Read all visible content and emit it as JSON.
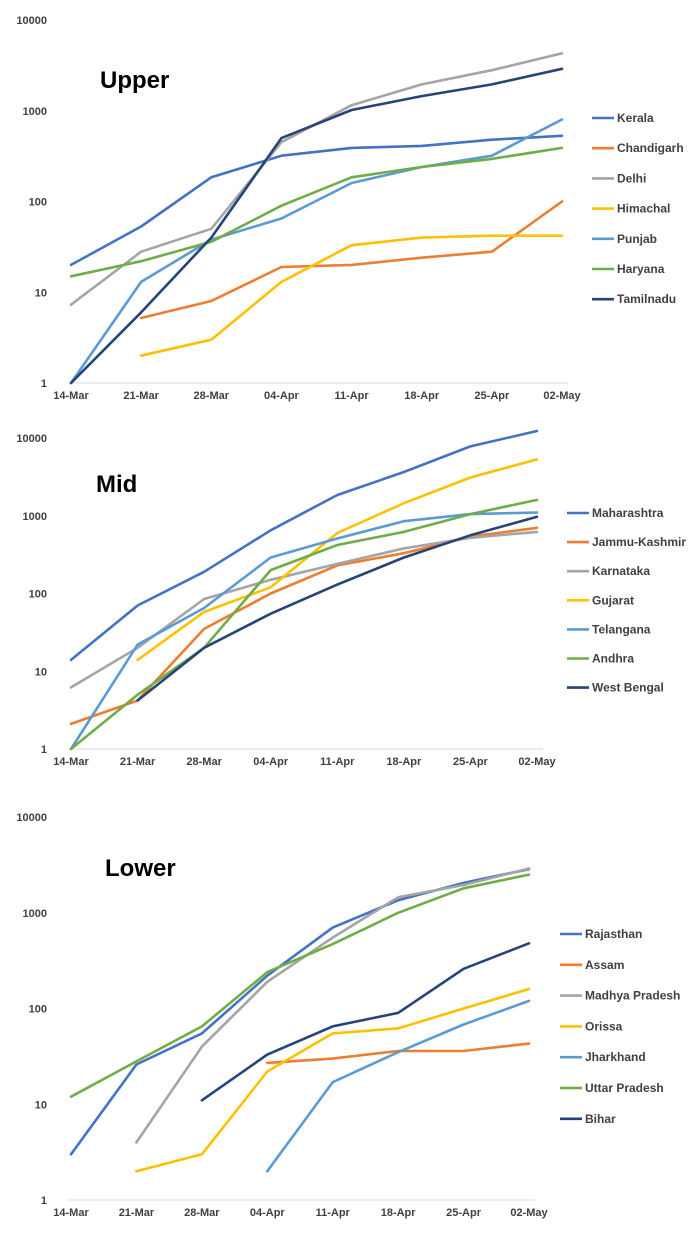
{
  "chart_data": [
    {
      "type": "line",
      "title": "Upper",
      "xlabel": "",
      "ylabel": "",
      "log_scale_y": true,
      "ylim": [
        1,
        10000
      ],
      "y_ticks": [
        "1",
        "10",
        "100",
        "1000",
        "10000"
      ],
      "categories": [
        "14-Mar",
        "21-Mar",
        "28-Mar",
        "04-Apr",
        "11-Apr",
        "18-Apr",
        "25-Apr",
        "02-May"
      ],
      "legend_position": "right",
      "series": [
        {
          "name": "Kerala",
          "color": "#4472C4",
          "values": [
            20,
            53,
            185,
            320,
            390,
            410,
            480,
            530
          ]
        },
        {
          "name": "Chandigarh",
          "color": "#ED7D31",
          "values": [
            null,
            5.2,
            8,
            19,
            20,
            24,
            28,
            100
          ]
        },
        {
          "name": "Delhi",
          "color": "#A5A5A5",
          "values": [
            7.3,
            28,
            50,
            450,
            1150,
            1950,
            2800,
            4300
          ]
        },
        {
          "name": "Himachal",
          "color": "#FFC000",
          "values": [
            null,
            2,
            3,
            13,
            33,
            40,
            42,
            42
          ]
        },
        {
          "name": "Punjab",
          "color": "#5B9BD5",
          "values": [
            1,
            13,
            38,
            65,
            160,
            240,
            320,
            800
          ]
        },
        {
          "name": "Haryana",
          "color": "#70AD47",
          "values": [
            15,
            22,
            36,
            90,
            185,
            240,
            295,
            390
          ]
        },
        {
          "name": "Tamilnadu",
          "color": "#264478",
          "values": [
            1,
            6,
            40,
            500,
            1020,
            1450,
            1950,
            2900
          ]
        }
      ]
    },
    {
      "type": "line",
      "title": "Mid",
      "xlabel": "",
      "ylabel": "",
      "log_scale_y": true,
      "ylim": [
        1,
        10000
      ],
      "y_ticks": [
        "1",
        "10",
        "100",
        "1000",
        "10000"
      ],
      "categories": [
        "14-Mar",
        "21-Mar",
        "28-Mar",
        "04-Apr",
        "11-Apr",
        "18-Apr",
        "25-Apr",
        "02-May"
      ],
      "legend_position": "right",
      "series": [
        {
          "name": "Maharashtra",
          "color": "#4472C4",
          "values": [
            14,
            70,
            190,
            650,
            1850,
            3650,
            7800,
            12300
          ]
        },
        {
          "name": "Jammu-Kashmir",
          "color": "#ED7D31",
          "values": [
            2.1,
            4.2,
            35,
            100,
            230,
            330,
            540,
            700
          ]
        },
        {
          "name": "Karnataka",
          "color": "#A5A5A5",
          "values": [
            6.2,
            20,
            85,
            150,
            240,
            380,
            520,
            620
          ]
        },
        {
          "name": "Gujarat",
          "color": "#FFC000",
          "values": [
            null,
            14,
            58,
            120,
            600,
            1450,
            3100,
            5300
          ]
        },
        {
          "name": "Telangana",
          "color": "#5B9BD5",
          "values": [
            1,
            22,
            65,
            290,
            510,
            850,
            1050,
            1100
          ]
        },
        {
          "name": "Andhra",
          "color": "#70AD47",
          "values": [
            1,
            5,
            20,
            200,
            420,
            620,
            1050,
            1600
          ]
        },
        {
          "name": "West Bengal",
          "color": "#264478",
          "values": [
            null,
            4.2,
            20,
            55,
            130,
            290,
            560,
            970
          ]
        }
      ]
    },
    {
      "type": "line",
      "title": "Lower",
      "xlabel": "",
      "ylabel": "",
      "log_scale_y": true,
      "ylim": [
        1,
        10000
      ],
      "y_ticks": [
        "1",
        "10",
        "100",
        "1000",
        "10000"
      ],
      "categories": [
        "14-Mar",
        "21-Mar",
        "28-Mar",
        "04-Apr",
        "11-Apr",
        "18-Apr",
        "25-Apr",
        "02-May"
      ],
      "legend_position": "right",
      "series": [
        {
          "name": "Rajasthan",
          "color": "#4472C4",
          "values": [
            3,
            26,
            55,
            220,
            700,
            1350,
            2050,
            2850
          ]
        },
        {
          "name": "Assam",
          "color": "#ED7D31",
          "values": [
            null,
            null,
            null,
            27,
            30,
            36,
            36,
            43
          ]
        },
        {
          "name": "Madhya Pradesh",
          "color": "#A5A5A5",
          "values": [
            null,
            4,
            40,
            190,
            550,
            1450,
            1950,
            2900
          ]
        },
        {
          "name": "Orissa",
          "color": "#FFC000",
          "values": [
            null,
            2,
            3,
            22,
            55,
            62,
            100,
            160
          ]
        },
        {
          "name": "Jharkhand",
          "color": "#5B9BD5",
          "values": [
            null,
            null,
            null,
            2,
            17,
            35,
            68,
            120
          ]
        },
        {
          "name": "Uttar Pradesh",
          "color": "#70AD47",
          "values": [
            12,
            28,
            65,
            240,
            470,
            1000,
            1800,
            2500
          ]
        },
        {
          "name": "Bihar",
          "color": "#264478",
          "values": [
            null,
            null,
            11,
            33,
            65,
            90,
            260,
            480
          ]
        }
      ]
    }
  ]
}
